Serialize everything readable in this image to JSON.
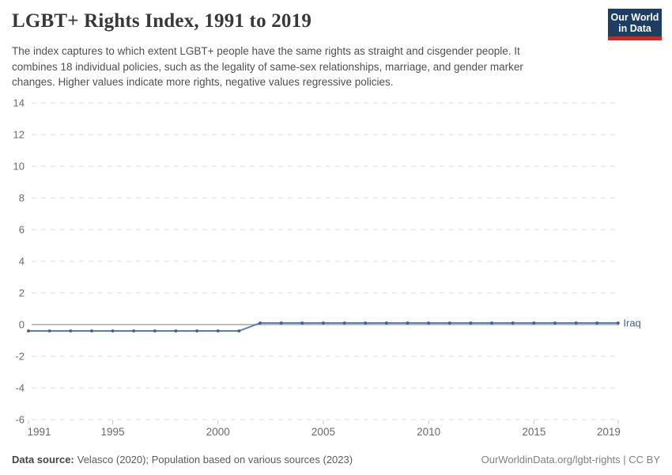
{
  "header": {
    "title": "LGBT+ Rights Index, 1991 to 2019",
    "subtitle": "The index captures to which extent LGBT+ people have the same rights as straight and cisgender people. It combines 18 individual policies, such as the legality of same-sex relationships, marriage, and gender marker changes. Higher values indicate more rights, negative values regressive policies.",
    "logo": {
      "line1": "Our World",
      "line2": "in Data"
    }
  },
  "chart_data": {
    "type": "line",
    "title": "LGBT+ Rights Index, 1991 to 2019",
    "x": [
      1991,
      1992,
      1993,
      1994,
      1995,
      1996,
      1997,
      1998,
      1999,
      2000,
      2001,
      2002,
      2003,
      2004,
      2005,
      2006,
      2007,
      2008,
      2009,
      2010,
      2011,
      2012,
      2013,
      2014,
      2015,
      2016,
      2017,
      2018,
      2019
    ],
    "series": [
      {
        "name": "Iraq",
        "values": [
          -0.4,
          -0.4,
          -0.4,
          -0.4,
          -0.4,
          -0.4,
          -0.4,
          -0.4,
          -0.4,
          -0.4,
          -0.4,
          0.1,
          0.1,
          0.1,
          0.1,
          0.1,
          0.1,
          0.1,
          0.1,
          0.1,
          0.1,
          0.1,
          0.1,
          0.1,
          0.1,
          0.1,
          0.1,
          0.1,
          0.1
        ]
      }
    ],
    "xticks": [
      1991,
      1995,
      2000,
      2005,
      2010,
      2015,
      2019
    ],
    "yticks": [
      14,
      12,
      10,
      8,
      6,
      4,
      2,
      0,
      -2,
      -4,
      -6
    ],
    "xlim": [
      1991,
      2019
    ],
    "ylim": [
      -6,
      14
    ],
    "grid": "horizontal-dashed",
    "legend": "end-of-line-label",
    "xlabel": "",
    "ylabel": "",
    "colors": {
      "line": "#5b7cb4",
      "marker": "#3d5c99",
      "entity_label": "#3d5c96",
      "grid": "#dedede",
      "zero_line": "#a6a6a6",
      "tick": "#c9c9c9",
      "axis_text": "#696969"
    }
  },
  "footer": {
    "source_label": "Data source:",
    "source_text": "Velasco (2020); Population based on various sources (2023)",
    "credit": "OurWorldinData.org/lgbt-rights | CC BY"
  }
}
